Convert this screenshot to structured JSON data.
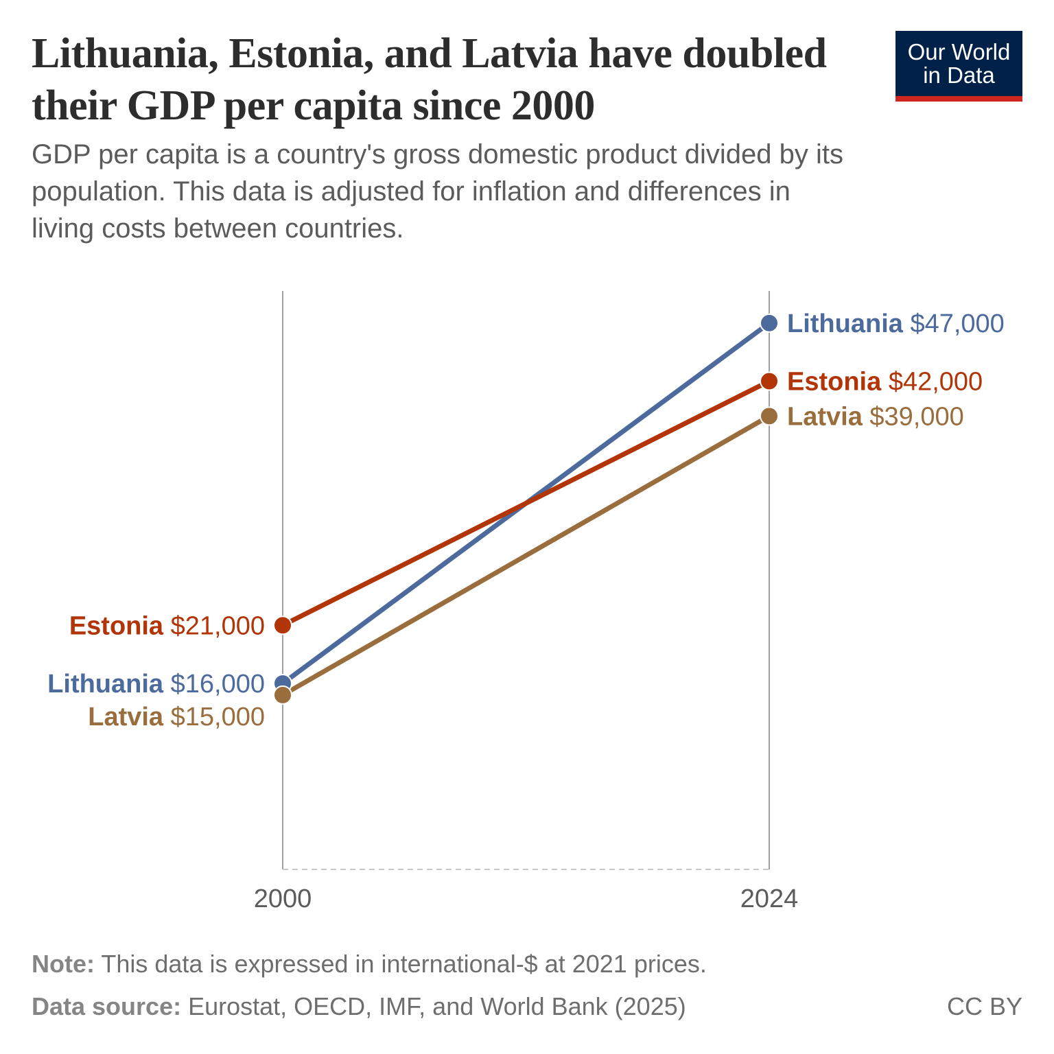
{
  "title": "Lithuania, Estonia, and Latvia have doubled their GDP per capita since 2000",
  "subtitle": "GDP per capita is a country's gross domestic product divided by its population. This data is adjusted for inflation and differences in living costs between countries.",
  "logo": {
    "line1": "Our World",
    "line2": "in Data",
    "bg": "#002147",
    "accent": "#ce261e"
  },
  "note_label": "Note:",
  "note": "This data is expressed in international-$ at 2021 prices.",
  "source_label": "Data source:",
  "source": "Eurostat, OECD, IMF, and World Bank (2025)",
  "license": "CC BY",
  "chart_data": {
    "type": "line",
    "subtype": "slope",
    "x": [
      "2000",
      "2024"
    ],
    "ylim": [
      0,
      50000
    ],
    "grid": false,
    "series": [
      {
        "name": "Lithuania",
        "values": [
          16000,
          47000
        ],
        "labels": [
          "$16,000",
          "$47,000"
        ],
        "color": "#4c6a9c"
      },
      {
        "name": "Estonia",
        "values": [
          21000,
          42000
        ],
        "labels": [
          "$21,000",
          "$42,000"
        ],
        "color": "#b13507"
      },
      {
        "name": "Latvia",
        "values": [
          15000,
          39000
        ],
        "labels": [
          "$15,000",
          "$39,000"
        ],
        "color": "#9a6d3c"
      }
    ]
  }
}
